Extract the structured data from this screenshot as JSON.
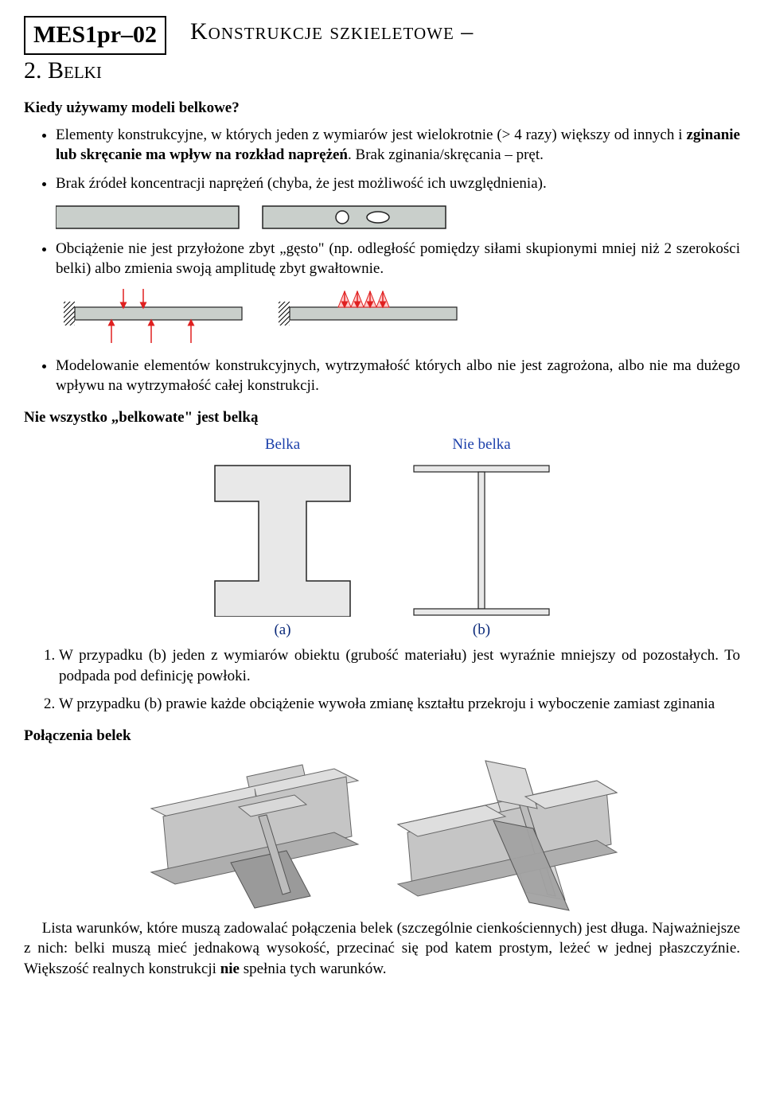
{
  "header": {
    "code": "MES1pr–02",
    "title_right": "Konstrukcje szkieletowe –",
    "section": "2. Belki"
  },
  "subheadings": {
    "q1": "Kiedy używamy modeli belkowe?",
    "not_all": "Nie wszystko „belkowate\" jest belką",
    "connections": "Połączenia belek"
  },
  "bullets": {
    "b1": "Elementy konstrukcyjne, w których jeden z wymiarów jest wielokrotnie (> 4 razy) większy od innych i zginanie lub skręcanie ma wpływ na rozkład naprężeń. Brak zginania/skręcania – pręt.",
    "b2": "Brak źródeł koncentracji naprężeń (chyba, że jest możliwość ich uwzględnienia).",
    "b3": "Obciążenie nie jest przyłożone zbyt „gęsto\" (np. odległość pomiędzy siłami skupionymi mniej niż 2 szerokości belki) albo zmienia swoją amplitudę zbyt gwałtownie.",
    "b4": "Modelowanie elementów konstrukcyjnych, wytrzymałość których albo nie jest zagrożona, albo nie ma dużego wpływu na wytrzymałość całej konstrukcji."
  },
  "compare_labels": {
    "belka": "Belka",
    "niebelka": "Nie belka",
    "a": "(a)",
    "b": "(b)"
  },
  "numbered": {
    "n1": "W przypadku (b) jeden z wymiarów obiektu (grubość materiału) jest wyraźnie mniejszy od pozostałych. To podpada pod definicję powłoki.",
    "n2": "W przypadku (b) prawie każde obciążenie wywoła zmianę kształtu przekroju i wyboczenie zamiast zginania"
  },
  "final_paragraph": "Lista warunków, które muszą zadowalać połączenia belek (szczególnie cienkościennych) jest długa. Najważniejsze z nich: belki muszą mieć jednakową wysokość, przecinać się pod katem prostym, leżeć w jednej płaszczyźnie. Większość realnych konstrukcji nie spełnia tych warunków.",
  "colors": {
    "fill_gray": "#c9cfcb",
    "stroke_dark": "#222222",
    "arrow_red": "#e02020",
    "blue_label": "#1a3faa",
    "light_gray_fill": "#dedede",
    "light_gray_fill2": "#e8e8e8",
    "mid_gray": "#bfbfbf",
    "dark_gray": "#9a9a9a"
  }
}
